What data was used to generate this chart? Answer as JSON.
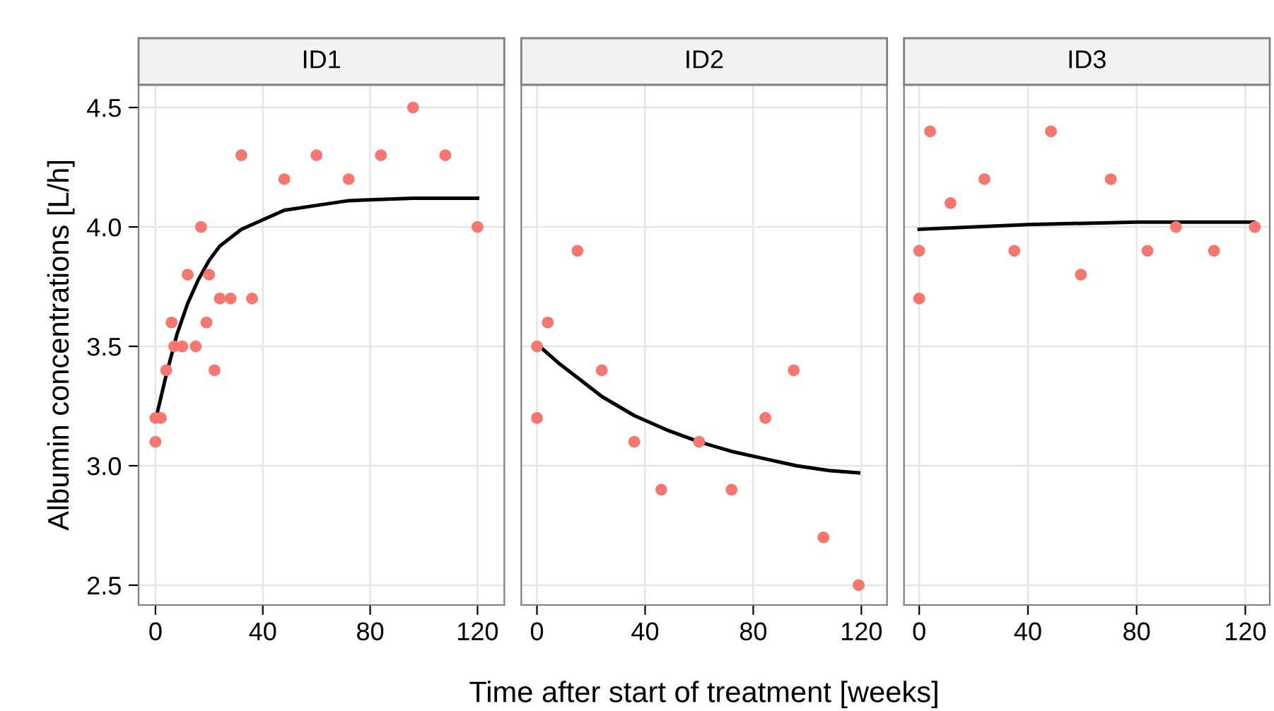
{
  "chart_data": [
    {
      "type": "scatter",
      "title": "ID1",
      "ylabel": "Albumin concentrations [L/h]",
      "xlim": [
        -6.3,
        130
      ],
      "ylim": [
        2.417,
        4.595
      ],
      "xticks": [
        0,
        40,
        80,
        120
      ],
      "yticks": [
        2.5,
        {
          "value": 3,
          "label": "3.0"
        },
        3.5,
        {
          "value": 4,
          "label": "4.0"
        },
        4.5
      ],
      "grid": true,
      "series": [
        {
          "color": "#f8766d",
          "marker": "circle",
          "x": [
            0,
            0,
            2,
            4,
            6,
            7,
            10,
            15,
            12,
            17,
            19,
            20,
            22,
            24,
            28,
            32,
            36,
            48,
            60,
            72,
            84,
            96,
            108,
            120
          ],
          "values": [
            3.1,
            3.2,
            3.2,
            3.4,
            3.6,
            3.5,
            3.5,
            3.5,
            3.8,
            4.0,
            3.6,
            3.8,
            3.4,
            3.7,
            3.7,
            4.3,
            3.7,
            4.2,
            4.3,
            4.2,
            4.3,
            4.5,
            4.3,
            4.0
          ]
        },
        {
          "type": "line",
          "color": "#000000",
          "line_style": "solid",
          "x": [
            0,
            4,
            8,
            12,
            16,
            20,
            24,
            32,
            40,
            48,
            60,
            72,
            96,
            120
          ],
          "values": [
            3.19,
            3.38,
            3.55,
            3.68,
            3.78,
            3.86,
            3.92,
            3.99,
            4.03,
            4.07,
            4.09,
            4.11,
            4.12,
            4.12
          ]
        }
      ]
    },
    {
      "type": "scatter",
      "title": "ID2",
      "xlabel": "Time after start of treatment [weeks]",
      "xlim": [
        -5.8,
        129.5
      ],
      "ylim": [
        2.417,
        4.595
      ],
      "xticks": [
        0,
        40,
        80,
        120
      ],
      "yticks": [
        {
          "value": 2.5,
          "label": null
        },
        {
          "value": 3,
          "label": null
        },
        {
          "value": 3.5,
          "label": null
        },
        {
          "value": 4,
          "label": null
        },
        {
          "value": 4.5,
          "label": null
        }
      ],
      "tick_labels": "x",
      "grid": true,
      "series": [
        {
          "color": "#f8766d",
          "marker": "circle",
          "x": [
            0,
            0,
            4,
            15,
            24,
            36,
            46,
            60,
            72,
            84.5,
            95,
            106,
            119
          ],
          "values": [
            3.5,
            3.2,
            3.6,
            3.9,
            3.4,
            3.1,
            2.9,
            3.1,
            2.9,
            3.2,
            3.4,
            2.7,
            2.5
          ]
        },
        {
          "type": "line",
          "color": "#000000",
          "line_style": "solid",
          "x": [
            0,
            8,
            16,
            24,
            36,
            48,
            60,
            72,
            84,
            96,
            108,
            119
          ],
          "values": [
            3.51,
            3.43,
            3.36,
            3.29,
            3.21,
            3.15,
            3.1,
            3.06,
            3.03,
            3.0,
            2.98,
            2.97
          ]
        }
      ]
    },
    {
      "type": "scatter",
      "title": "ID3",
      "xlim": [
        -5.6,
        129
      ],
      "ylim": [
        2.417,
        4.595
      ],
      "xticks": [
        0,
        40,
        80,
        120
      ],
      "yticks": [
        {
          "value": 2.5,
          "label": null
        },
        {
          "value": 3,
          "label": null
        },
        {
          "value": 3.5,
          "label": null
        },
        {
          "value": 4,
          "label": null
        },
        {
          "value": 4.5,
          "label": null
        }
      ],
      "tick_labels": "x",
      "grid": true,
      "series": [
        {
          "color": "#f8766d",
          "marker": "circle",
          "x": [
            0,
            0,
            4,
            11.5,
            24,
            35,
            48.5,
            59.5,
            70.5,
            84,
            94.5,
            108.5,
            123.5
          ],
          "values": [
            3.9,
            3.7,
            4.4,
            4.1,
            4.2,
            3.9,
            4.4,
            3.8,
            4.2,
            3.9,
            4.0,
            3.9,
            4.0
          ]
        },
        {
          "type": "line",
          "color": "#000000",
          "line_style": "solid",
          "x": [
            0,
            40,
            80,
            123
          ],
          "values": [
            3.99,
            4.01,
            4.02,
            4.02
          ]
        }
      ]
    }
  ]
}
